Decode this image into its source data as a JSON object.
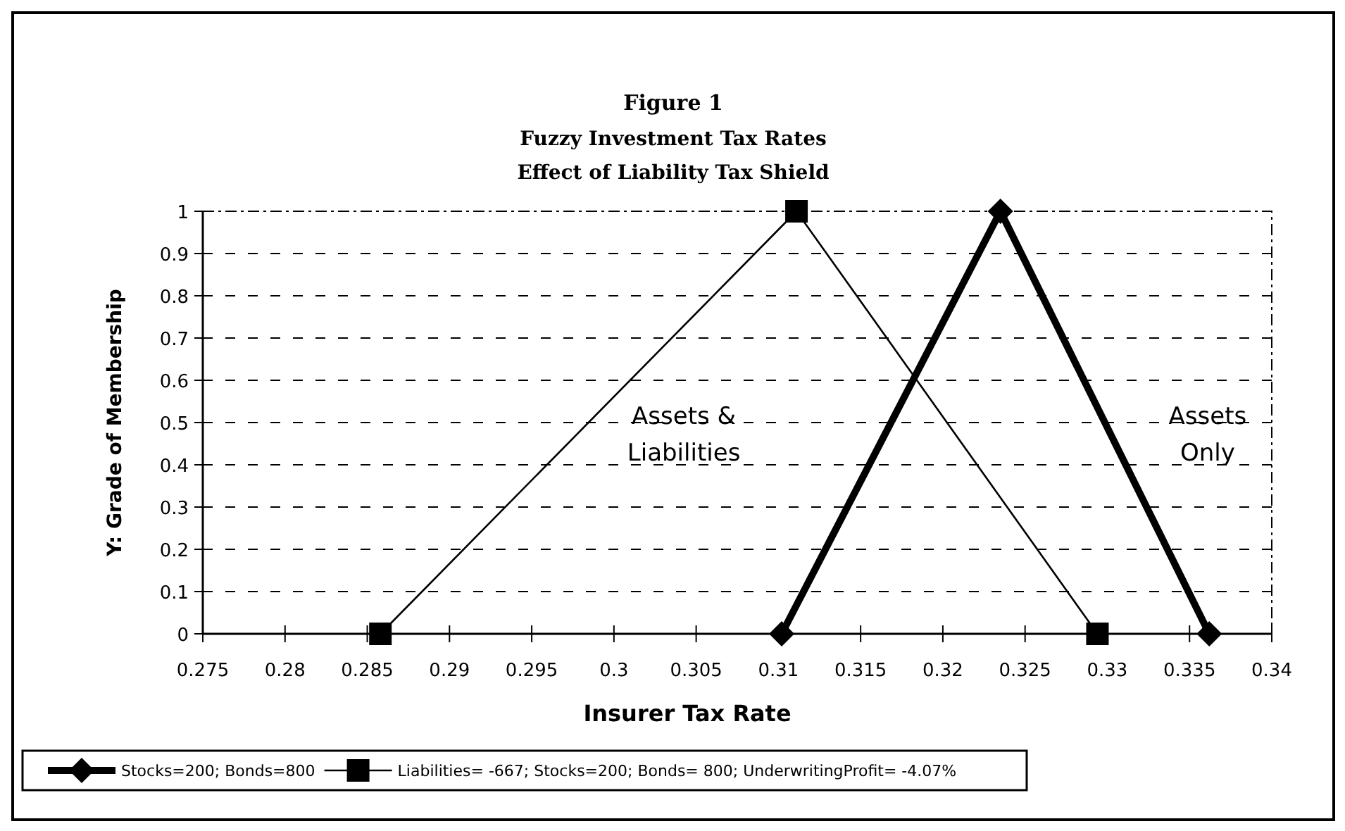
{
  "chart_data": {
    "type": "line",
    "title": "Figure 1",
    "subtitle": "Fuzzy Investment Tax Rates\nEffect of Liability Tax Shield",
    "xlabel": "Insurer Tax Rate",
    "ylabel": "Y: Grade of Membership",
    "series": [
      {
        "name": "Stocks=200; Bonds=800",
        "color": "#000000",
        "marker": "diamond",
        "x": [
          0.3102,
          0.3235,
          0.3362
        ],
        "values": [
          0,
          1,
          0
        ]
      },
      {
        "name": "Liabilities= -667; Stocks=200; Bonds= 800; UnderwritingProfit= -4.07%",
        "color": "#000000",
        "marker": "square",
        "x": [
          0.2858,
          0.3111,
          0.3294
        ],
        "values": [
          0,
          1,
          0
        ]
      }
    ],
    "xlim": [
      0.275,
      0.34
    ],
    "xticks": [
      0.275,
      0.28,
      0.285,
      0.29,
      0.295,
      0.3,
      0.305,
      0.31,
      0.315,
      0.32,
      0.325,
      0.33,
      0.335,
      0.34
    ],
    "ylim": [
      0,
      1
    ],
    "yticks": [
      0,
      0.1,
      0.2,
      0.3,
      0.4,
      0.5,
      0.6,
      0.7,
      0.8,
      0.9,
      1
    ],
    "grid": "y",
    "legend": "bottom",
    "line_style": "solid",
    "annotations": [
      "Assets &\nLiabilities",
      "Assets\nOnly"
    ]
  }
}
